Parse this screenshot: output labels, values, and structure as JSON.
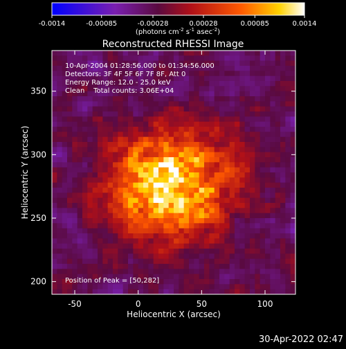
{
  "chart_data": {
    "type": "heatmap",
    "title": "Reconstructed RHESSI Image",
    "xlabel": "Heliocentric X (arcsec)",
    "ylabel": "Heliocentric Y (arcsec)",
    "xlim": [
      -68,
      124
    ],
    "ylim": [
      190,
      382
    ],
    "x_ticks": [
      -50,
      0,
      50,
      100
    ],
    "y_ticks": [
      200,
      250,
      300,
      350
    ],
    "colorbar": {
      "range": [
        -0.0014,
        0.0014
      ],
      "tick_labels": [
        "-0.0014",
        "-0.00085",
        "-0.00028",
        "0.00028",
        "0.00085",
        "0.0014"
      ],
      "unit_label": [
        "(photons cm",
        "-2",
        " s",
        "-1",
        " asec",
        "-2",
        ")"
      ]
    },
    "annotations": [
      "10-Apr-2004 01:28:56.000 to 01:34:56.000",
      "Detectors: 3F 4F 5F 6F 7F 8F, Att 0",
      "Energy Range: 12.0 - 25.0 keV",
      "Clean    Total counts: 3.06E+04",
      "Position of Peak = [50,282]"
    ],
    "peak": [
      50,
      282
    ],
    "background_level": -0.0003,
    "peak_value": 0.0014,
    "source_extent_arcsec": [
      60,
      50
    ],
    "timestamp": "30-Apr-2022 02:47"
  }
}
